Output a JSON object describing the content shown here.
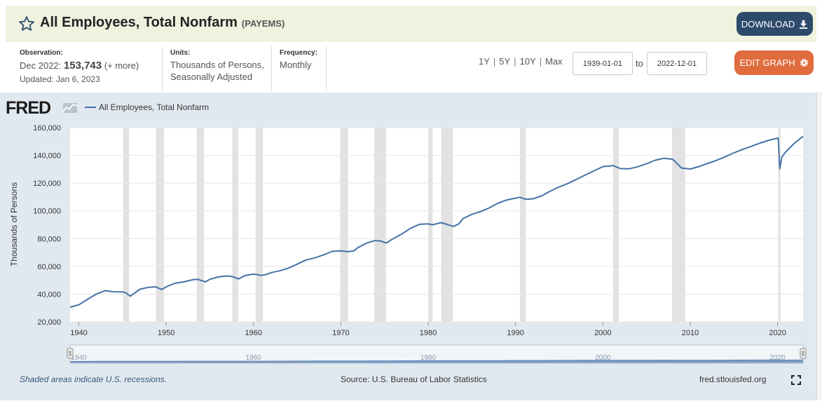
{
  "header": {
    "title": "All Employees, Total Nonfarm",
    "series_id": "(PAYEMS)",
    "download_label": "DOWNLOAD",
    "star_icon": "star-outline-icon",
    "download_icon": "download-icon"
  },
  "meta": {
    "observation_label": "Observation:",
    "observation_date": "Dec 2022:",
    "observation_value": "153,743",
    "observation_more": "(+ more)",
    "updated": "Updated: Jan 6, 2023",
    "units_label": "Units:",
    "units_line1": "Thousands of Persons,",
    "units_line2": "Seasonally Adjusted",
    "frequency_label": "Frequency:",
    "frequency_value": "Monthly"
  },
  "controls": {
    "ranges": [
      "1Y",
      "5Y",
      "10Y",
      "Max"
    ],
    "start_date": "1939-01-01",
    "to_label": "to",
    "end_date": "2022-12-01",
    "edit_label": "EDIT GRAPH",
    "edit_icon": "gear-icon"
  },
  "footer": {
    "recession_note": "Shaded areas indicate U.S. recessions.",
    "source": "Source: U.S. Bureau of Labor Statistics",
    "url": "fred.stlouisfed.org",
    "fullscreen_icon": "fullscreen-icon"
  },
  "colors": {
    "line": "#4572a7",
    "recession": "#e2e2e2",
    "panel": "#e1e9f0",
    "download_btn": "#2e4a6b",
    "edit_btn": "#e06b3c"
  },
  "chart_data": {
    "type": "line",
    "brand": "FRED",
    "legend_label": "All Employees, Total Nonfarm",
    "ylabel": "Thousands of Persons",
    "xlabel": "",
    "ylim": [
      20000,
      160000
    ],
    "xlim": [
      1939.0,
      2022.92
    ],
    "yticks": [
      20000,
      40000,
      60000,
      80000,
      100000,
      120000,
      140000,
      160000
    ],
    "ytick_labels": [
      "20,000",
      "40,000",
      "60,000",
      "80,000",
      "100,000",
      "120,000",
      "140,000",
      "160,000"
    ],
    "xticks": [
      1940,
      1950,
      1960,
      1970,
      1980,
      1990,
      2000,
      2010,
      2020
    ],
    "xtick_labels": [
      "1940",
      "1950",
      "1960",
      "1970",
      "1980",
      "1990",
      "2000",
      "2010",
      "2020"
    ],
    "navigator_labels": [
      "1940",
      "1960",
      "1980",
      "2000",
      "2020"
    ],
    "grid": true,
    "recessions": [
      [
        1945.08,
        1945.75
      ],
      [
        1948.83,
        1949.75
      ],
      [
        1953.5,
        1954.33
      ],
      [
        1957.58,
        1958.25
      ],
      [
        1960.25,
        1961.08
      ],
      [
        1969.92,
        1970.83
      ],
      [
        1973.83,
        1975.17
      ],
      [
        1980.0,
        1980.5
      ],
      [
        1981.5,
        1982.83
      ],
      [
        1990.5,
        1991.17
      ],
      [
        2001.17,
        2001.83
      ],
      [
        2007.92,
        2009.42
      ],
      [
        2020.08,
        2020.33
      ]
    ],
    "series": [
      {
        "name": "All Employees, Total Nonfarm",
        "x": [
          1939.0,
          1940.0,
          1941.0,
          1942.0,
          1943.0,
          1944.0,
          1945.0,
          1945.4,
          1945.9,
          1946.5,
          1947.0,
          1948.0,
          1948.8,
          1949.5,
          1950.0,
          1951.0,
          1952.0,
          1953.0,
          1953.6,
          1954.5,
          1955.0,
          1956.0,
          1957.0,
          1957.6,
          1958.3,
          1959.0,
          1960.0,
          1960.9,
          1961.5,
          1962.0,
          1963.0,
          1964.0,
          1965.0,
          1966.0,
          1967.0,
          1968.0,
          1969.0,
          1969.9,
          1970.8,
          1971.5,
          1972.0,
          1973.0,
          1973.9,
          1974.5,
          1975.2,
          1976.0,
          1977.0,
          1978.0,
          1979.0,
          1980.0,
          1980.5,
          1981.5,
          1982.9,
          1983.5,
          1984.0,
          1985.0,
          1986.0,
          1987.0,
          1988.0,
          1989.0,
          1990.5,
          1991.2,
          1992.0,
          1993.0,
          1994.0,
          1995.0,
          1996.0,
          1997.0,
          1998.0,
          1999.0,
          2000.0,
          2001.2,
          2002.0,
          2003.0,
          2004.0,
          2005.0,
          2006.0,
          2007.0,
          2008.0,
          2009.0,
          2010.0,
          2011.0,
          2012.0,
          2013.0,
          2014.0,
          2015.0,
          2016.0,
          2017.0,
          2018.0,
          2019.0,
          2020.08,
          2020.25,
          2020.5,
          2021.0,
          2022.0,
          2022.92
        ],
        "values": [
          30600,
          32300,
          36200,
          40000,
          42500,
          41700,
          41600,
          40800,
          38500,
          41300,
          43500,
          44900,
          45200,
          43300,
          45200,
          47800,
          48800,
          50300,
          50700,
          48800,
          50700,
          52400,
          53100,
          52600,
          51000,
          53300,
          54400,
          53500,
          54200,
          55500,
          56800,
          58700,
          61600,
          64600,
          66100,
          68200,
          70800,
          71200,
          70600,
          71200,
          73700,
          76900,
          78600,
          78400,
          76800,
          80000,
          83400,
          87500,
          90300,
          90600,
          90000,
          91500,
          88800,
          90600,
          94500,
          97500,
          99500,
          102200,
          105500,
          107900,
          109800,
          108300,
          108700,
          110800,
          114300,
          117300,
          119700,
          122800,
          125900,
          128900,
          131900,
          132600,
          130500,
          130300,
          131800,
          134000,
          136500,
          137900,
          137200,
          130900,
          130200,
          131900,
          134200,
          136400,
          139000,
          141800,
          144300,
          146500,
          148900,
          150900,
          152500,
          130400,
          138900,
          143000,
          149200,
          153743
        ]
      }
    ]
  }
}
